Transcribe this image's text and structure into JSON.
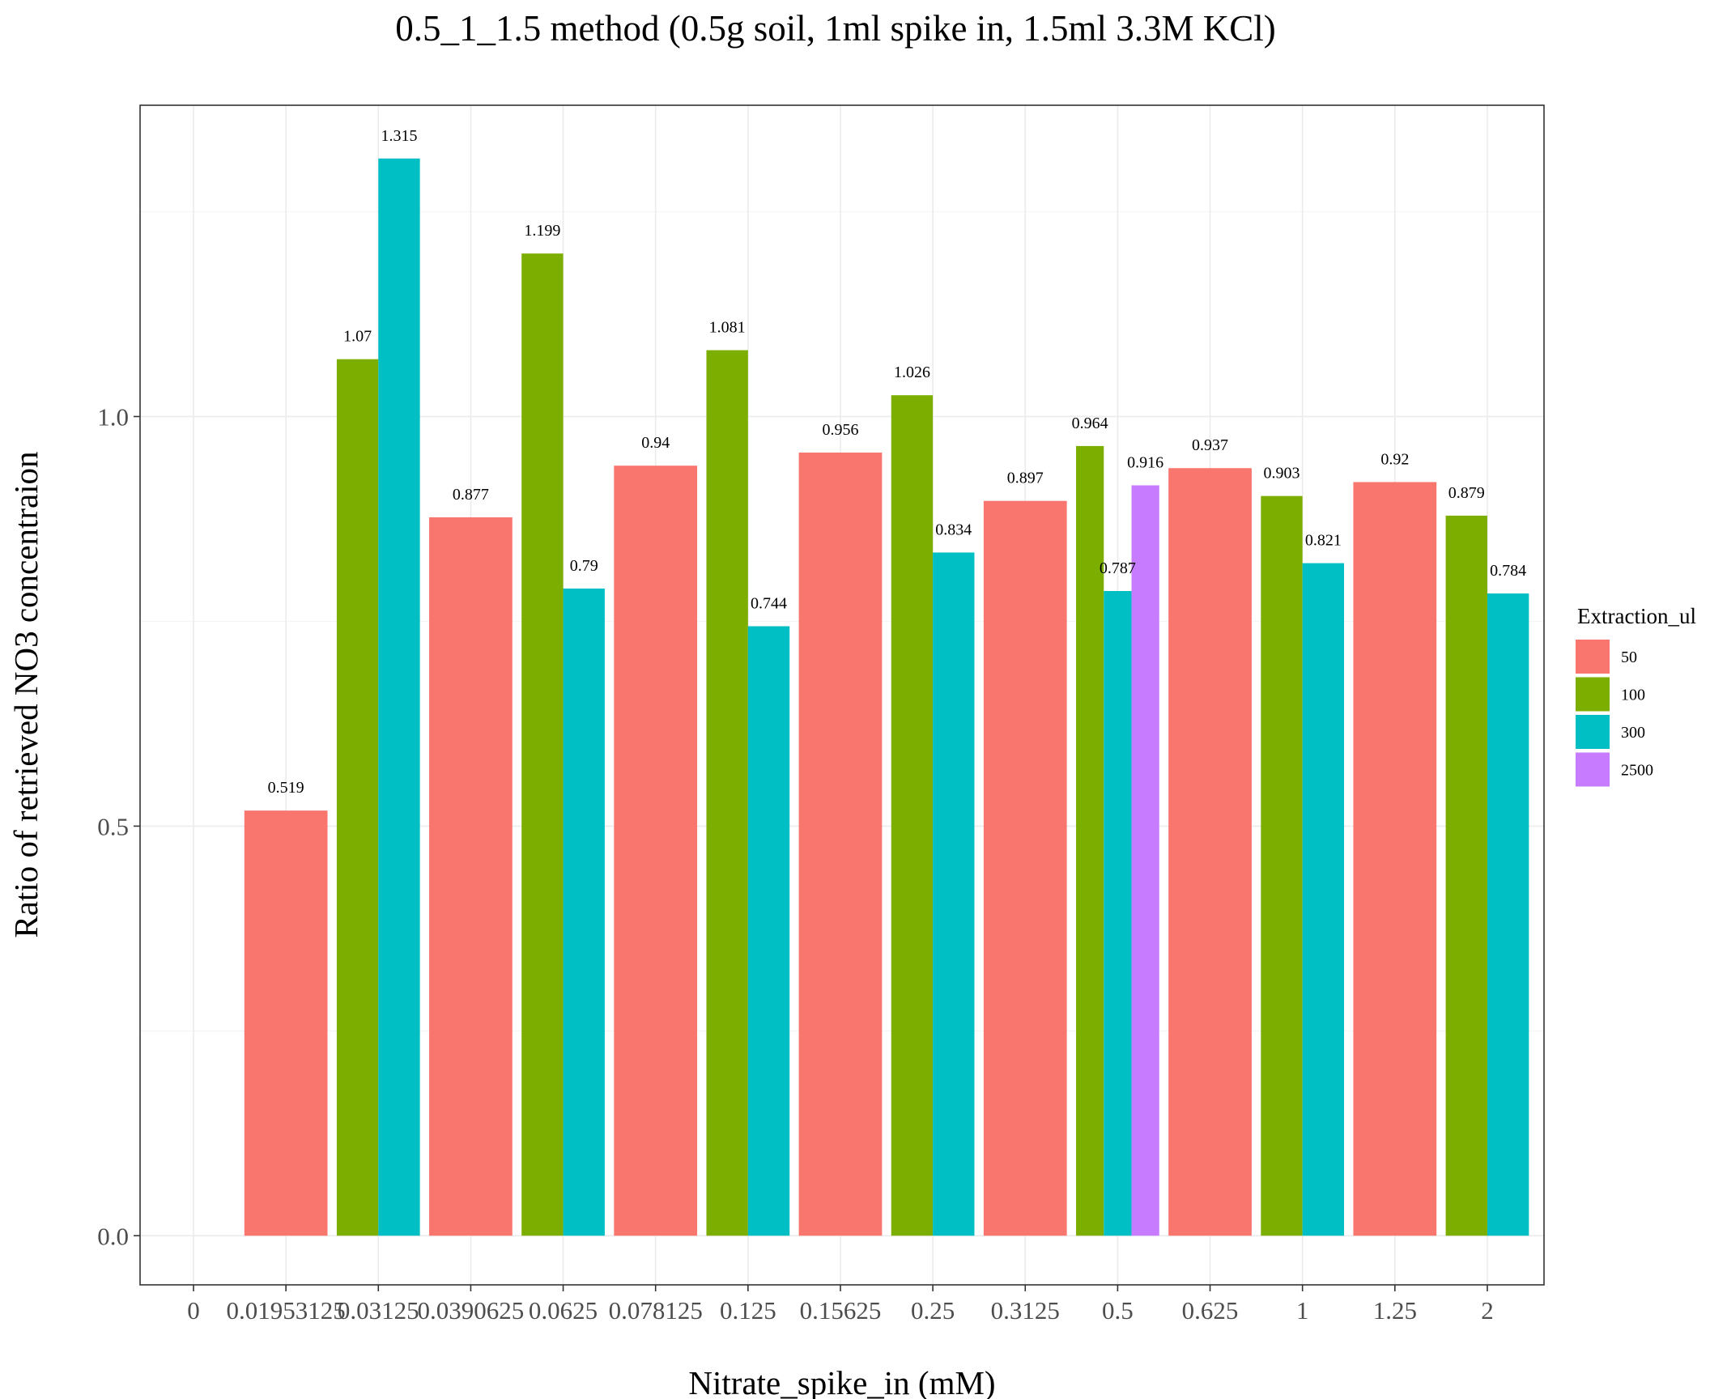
{
  "chart_data": {
    "type": "bar",
    "title": "0.5_1_1.5 method (0.5g soil, 1ml spike in, 1.5ml 3.3M KCl)",
    "xlabel": "Nitrate_spike_in (mM)",
    "ylabel": "Ratio of retrieved NO3 concentraion",
    "categories": [
      "0",
      "0.01953125",
      "0.03125",
      "0.0390625",
      "0.0625",
      "0.078125",
      "0.125",
      "0.15625",
      "0.25",
      "0.3125",
      "0.5",
      "0.625",
      "1",
      "1.25",
      "2"
    ],
    "ylim": [
      -0.06,
      1.38
    ],
    "yticks": [
      0.0,
      0.5,
      1.0
    ],
    "ytick_labels": [
      "0.0",
      "0.5",
      "1.0"
    ],
    "grid": true,
    "legend": {
      "title": "Extraction_ul",
      "position": "right",
      "entries": [
        {
          "label": "50",
          "color": "#F8766D"
        },
        {
          "label": "100",
          "color": "#7CAE00"
        },
        {
          "label": "300",
          "color": "#00BFC4"
        },
        {
          "label": "2500",
          "color": "#C77CFF"
        }
      ]
    },
    "series": [
      {
        "name": "50",
        "color": "#F8766D",
        "values": [
          null,
          0.519,
          null,
          0.877,
          null,
          0.94,
          null,
          0.956,
          null,
          0.897,
          null,
          0.937,
          null,
          0.92,
          null
        ]
      },
      {
        "name": "100",
        "color": "#7CAE00",
        "values": [
          null,
          null,
          1.07,
          null,
          1.199,
          null,
          1.081,
          null,
          1.026,
          null,
          0.964,
          null,
          0.903,
          null,
          0.879
        ]
      },
      {
        "name": "300",
        "color": "#00BFC4",
        "values": [
          null,
          null,
          1.315,
          null,
          0.79,
          null,
          0.744,
          null,
          0.834,
          null,
          0.787,
          null,
          0.821,
          null,
          0.784
        ]
      },
      {
        "name": "2500",
        "color": "#C77CFF",
        "values": [
          null,
          null,
          null,
          null,
          null,
          null,
          null,
          null,
          null,
          null,
          0.916,
          null,
          null,
          null,
          null
        ]
      }
    ],
    "data_labels": [
      [
        "",
        "0.519",
        "",
        "0.877",
        "",
        "0.94",
        "",
        "0.956",
        "",
        "0.897",
        "",
        "0.937",
        "",
        "0.92",
        ""
      ],
      [
        "",
        "",
        "1.07",
        "",
        "1.199",
        "",
        "1.081",
        "",
        "1.026",
        "",
        "0.964",
        "",
        "0.903",
        "",
        "0.879"
      ],
      [
        "",
        "",
        "1.315",
        "",
        "0.79",
        "",
        "0.744",
        "",
        "0.834",
        "",
        "0.787",
        "",
        "0.821",
        "",
        "0.784"
      ],
      [
        "",
        "",
        "",
        "",
        "",
        "",
        "",
        "",
        "",
        "",
        "0.916",
        "",
        "",
        "",
        ""
      ]
    ],
    "theme": {
      "panel_border": "#333333",
      "grid_major": "#ebebeb",
      "grid_minor": "#f5f5f5",
      "tick_color": "#333333"
    }
  }
}
